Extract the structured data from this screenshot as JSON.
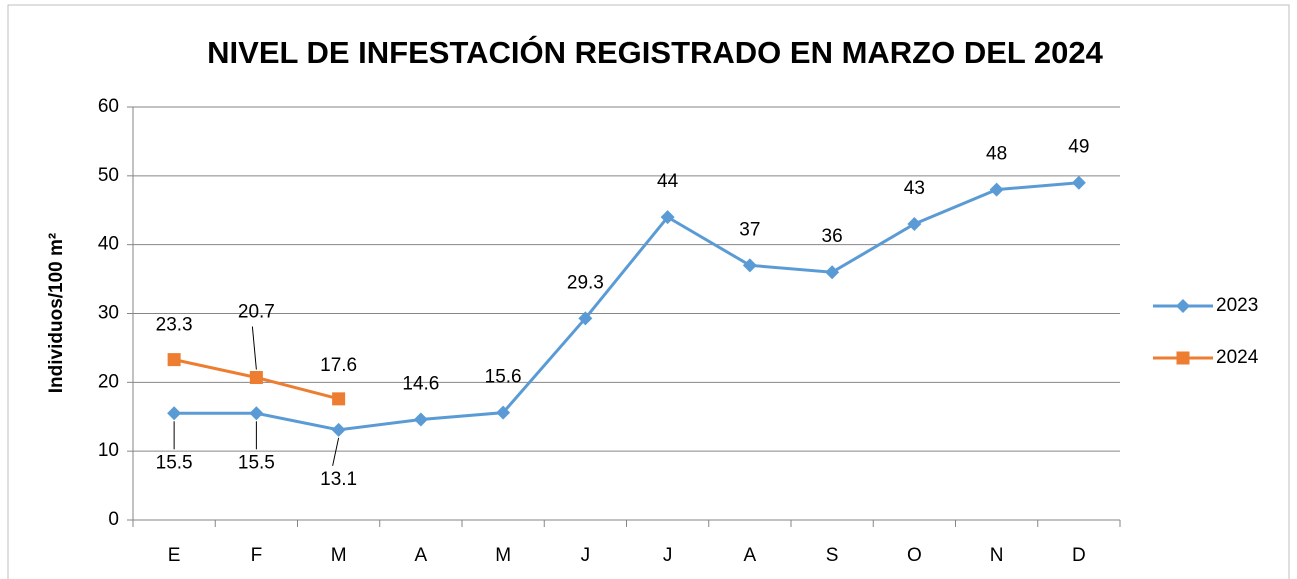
{
  "chart_data": {
    "type": "line",
    "title": "NIVEL DE INFESTACIÓN REGISTRADO EN MARZO DEL 2024",
    "y_label": "Individuos/100 m²",
    "categories": [
      "E",
      "F",
      "M",
      "A",
      "M",
      "J",
      "J",
      "A",
      "S",
      "O",
      "N",
      "D"
    ],
    "series": [
      {
        "name": "2023",
        "color": "#5b9bd5",
        "marker": "diamond",
        "values": [
          15.5,
          15.5,
          13.1,
          14.6,
          15.6,
          29.3,
          44,
          37,
          36,
          43,
          48,
          49
        ]
      },
      {
        "name": "2024",
        "color": "#ed7d31",
        "marker": "square",
        "values": [
          23.3,
          20.7,
          17.6,
          null,
          null,
          null,
          null,
          null,
          null,
          null,
          null,
          null
        ]
      }
    ],
    "ylim": [
      0,
      60
    ],
    "yticks": [
      0,
      10,
      20,
      30,
      40,
      50,
      60
    ],
    "grid": true,
    "legend": "right"
  }
}
